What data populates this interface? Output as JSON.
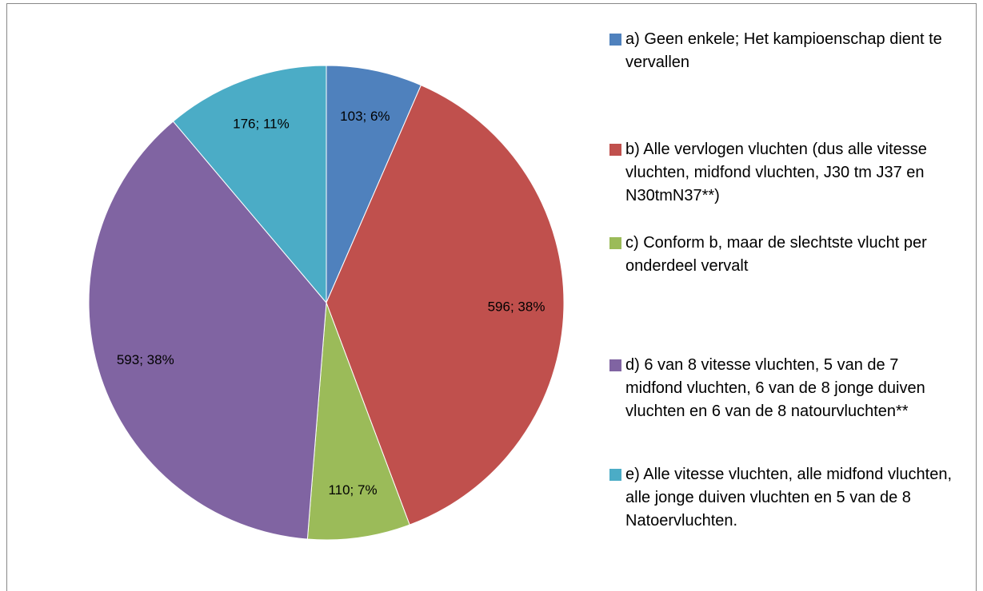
{
  "chart_data": {
    "type": "pie",
    "categories": [
      "a) Geen enkele; Het kampioenschap dient te vervallen",
      "b) Alle vervlogen vluchten (dus alle vitesse vluchten, midfond vluchten, J30 tm J37 en N30tmN37**)",
      "c) Conform b, maar de slechtste vlucht per onderdeel vervalt",
      "d) 6 van 8 vitesse vluchten, 5 van de 7 midfond vluchten, 6 van de 8 jonge duiven vluchten en 6 van de 8 natourvluchten**",
      "e) Alle vitesse vluchten, alle midfond vluchten, alle jonge duiven vluchten en 5 van de 8 Natoervluchten."
    ],
    "values": [
      103,
      596,
      110,
      593,
      176
    ],
    "value_labels": [
      "103; 6%",
      "596; 38%",
      "110; 7%",
      "593; 38%",
      "176; 11%"
    ],
    "colors": [
      "#4f81bd",
      "#c0504d",
      "#9bbb59",
      "#8064a2",
      "#4bacc6"
    ],
    "legend": "right"
  }
}
